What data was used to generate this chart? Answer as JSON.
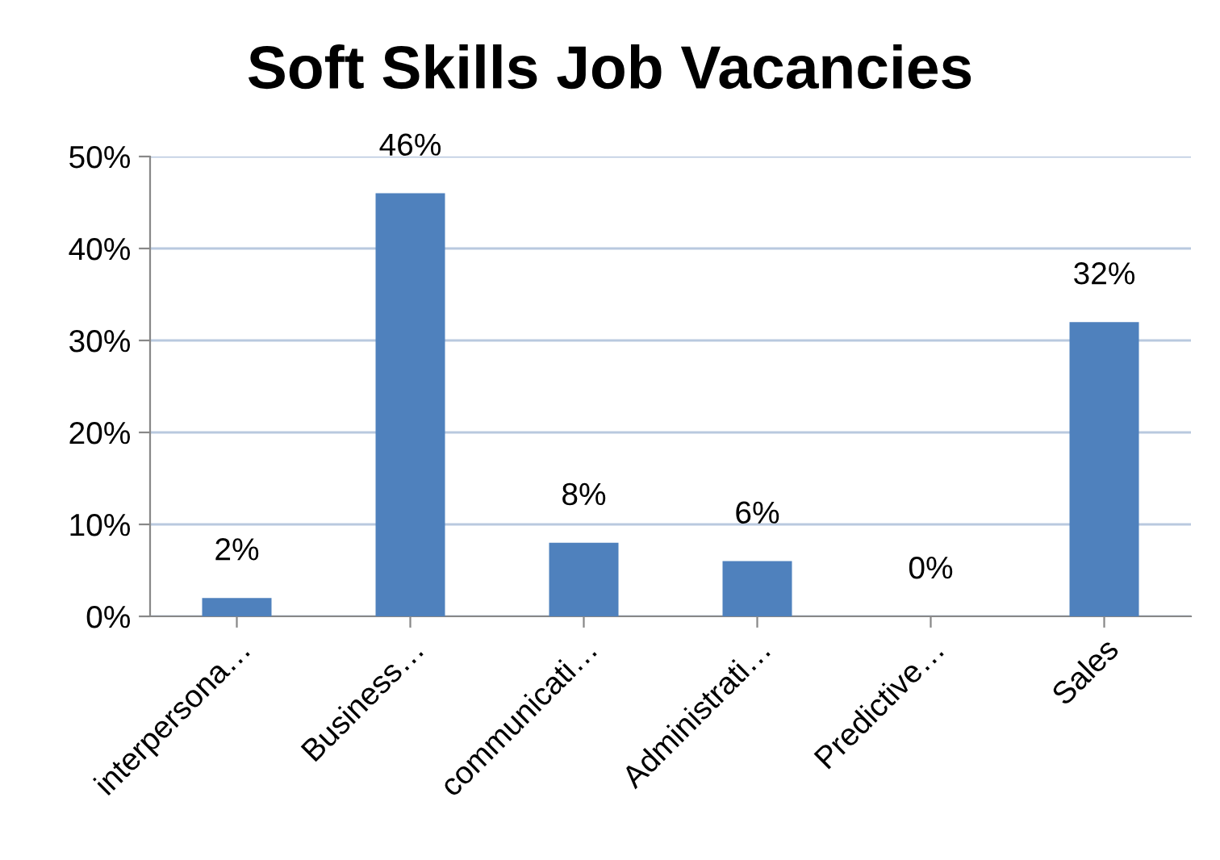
{
  "chart_data": {
    "type": "bar",
    "title": "Soft Skills Job Vacancies",
    "categories": [
      "interpersona…",
      "Business…",
      "communicati…",
      "Administrati…",
      "Predictive…",
      "Sales"
    ],
    "values": [
      2,
      46,
      8,
      6,
      0,
      32
    ],
    "value_labels": [
      "2%",
      "46%",
      "8%",
      "6%",
      "0%",
      "32%"
    ],
    "color": "#4f81bd",
    "ylim": [
      0,
      50
    ],
    "yticks": [
      {
        "value": 0,
        "label": "0%"
      },
      {
        "value": 10,
        "label": "10%"
      },
      {
        "value": 20,
        "label": "20%"
      },
      {
        "value": 30,
        "label": "30%"
      },
      {
        "value": 40,
        "label": "40%"
      },
      {
        "value": 50,
        "label": "50%"
      }
    ],
    "grid": "y",
    "legend": false
  }
}
